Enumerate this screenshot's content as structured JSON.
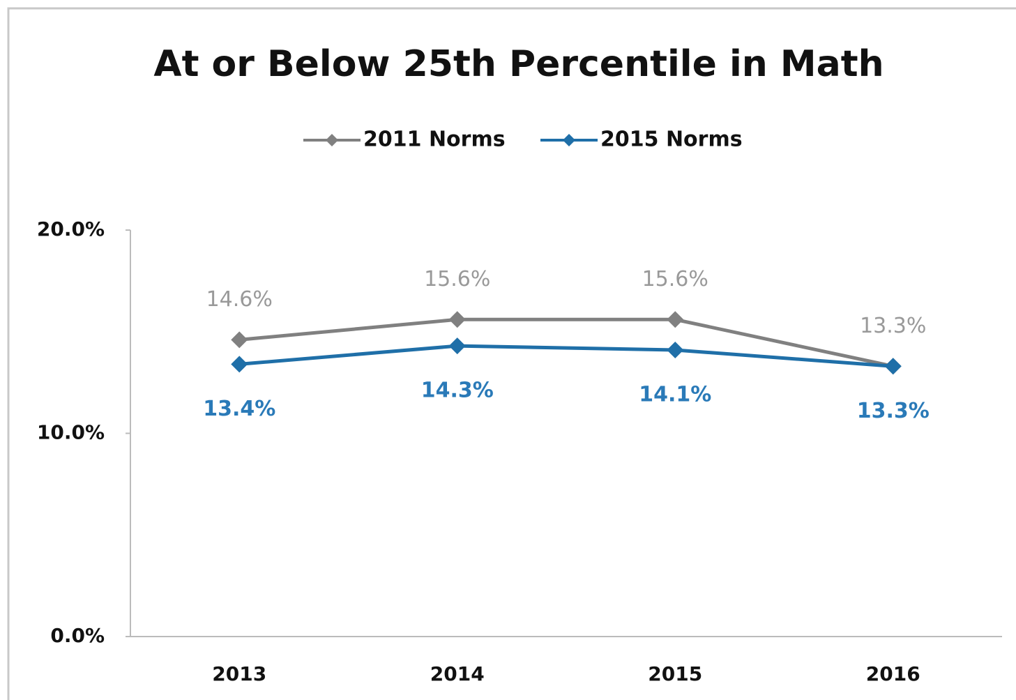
{
  "chart_data": {
    "type": "line",
    "title": "At or Below 25th Percentile in Math",
    "categories": [
      "2013",
      "2014",
      "2015",
      "2016"
    ],
    "series": [
      {
        "name": "2011 Norms",
        "color": "#808080",
        "values": [
          14.6,
          15.6,
          15.6,
          13.3
        ],
        "value_labels": [
          "14.6%",
          "15.6%",
          "15.6%",
          "13.3%"
        ]
      },
      {
        "name": "2015 Norms",
        "color": "#1f6fa8",
        "values": [
          13.4,
          14.3,
          14.1,
          13.3
        ],
        "value_labels": [
          "13.4%",
          "14.3%",
          "14.1%",
          "13.3%"
        ]
      }
    ],
    "ylim": [
      0,
      20
    ],
    "yticks": [
      {
        "value": 0,
        "label": "0.0%"
      },
      {
        "value": 10,
        "label": "10.0%"
      },
      {
        "value": 20,
        "label": "20.0%"
      }
    ],
    "grid": false,
    "legend": "top"
  }
}
